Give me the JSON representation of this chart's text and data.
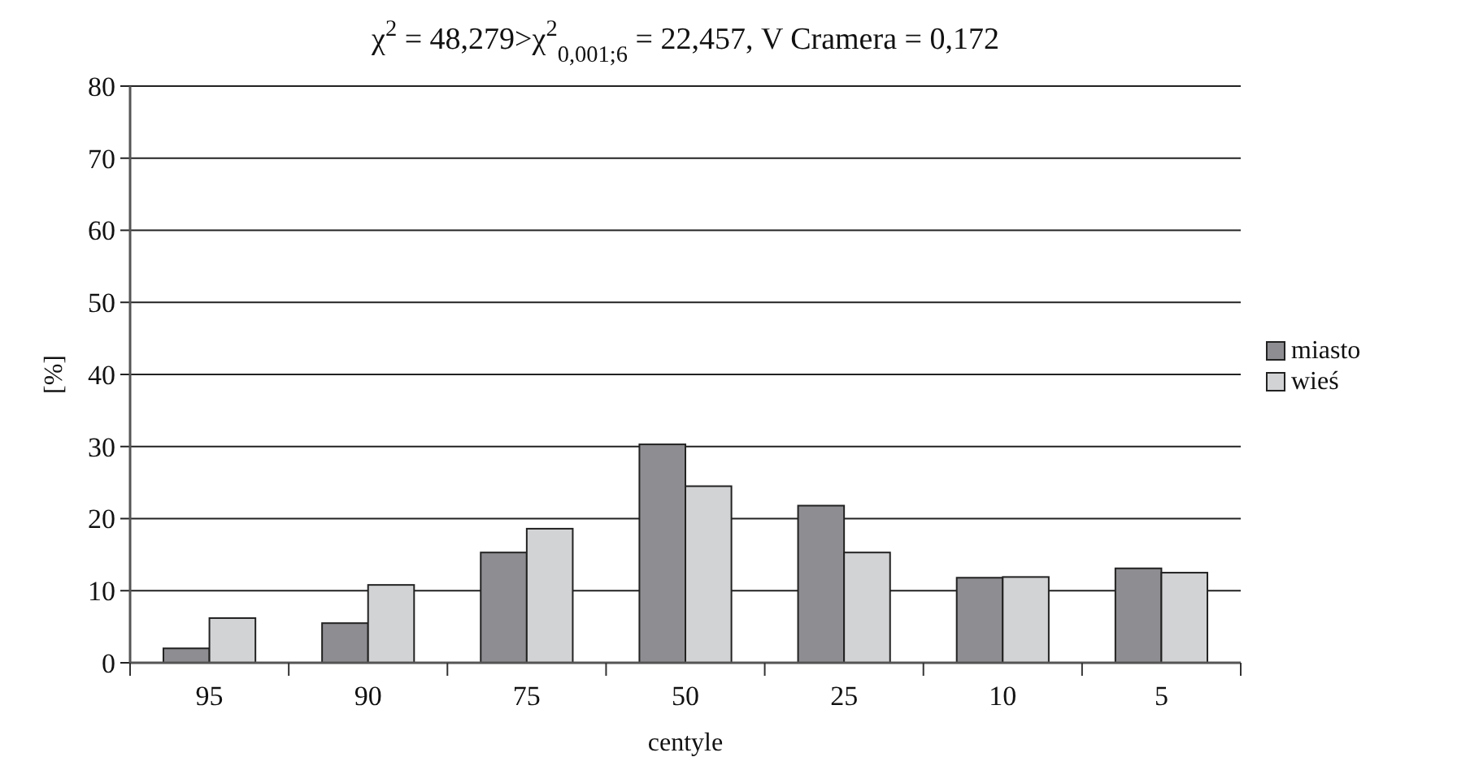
{
  "chart_data": {
    "type": "bar",
    "title": "χ$^{2}$ = 48,279>χ$^{2}$$_{0,001;6}$ = 22,457, V Cramera = 0,172",
    "xlabel": "centyle",
    "ylabel": "[%]",
    "categories": [
      "95",
      "90",
      "75",
      "50",
      "25",
      "10",
      "5"
    ],
    "series": [
      {
        "name": "miasto",
        "color": "#8e8e92",
        "values": [
          2.0,
          5.5,
          15.3,
          30.3,
          21.8,
          11.8,
          13.1
        ]
      },
      {
        "name": "wieś",
        "color": "#d2d3d4",
        "values": [
          6.2,
          10.8,
          18.6,
          24.5,
          15.3,
          11.9,
          12.5
        ]
      }
    ],
    "ylim": [
      0,
      80
    ],
    "yticks": [
      0,
      10,
      20,
      30,
      40,
      50,
      60,
      70,
      80
    ],
    "grid": "y",
    "legend": "right"
  }
}
